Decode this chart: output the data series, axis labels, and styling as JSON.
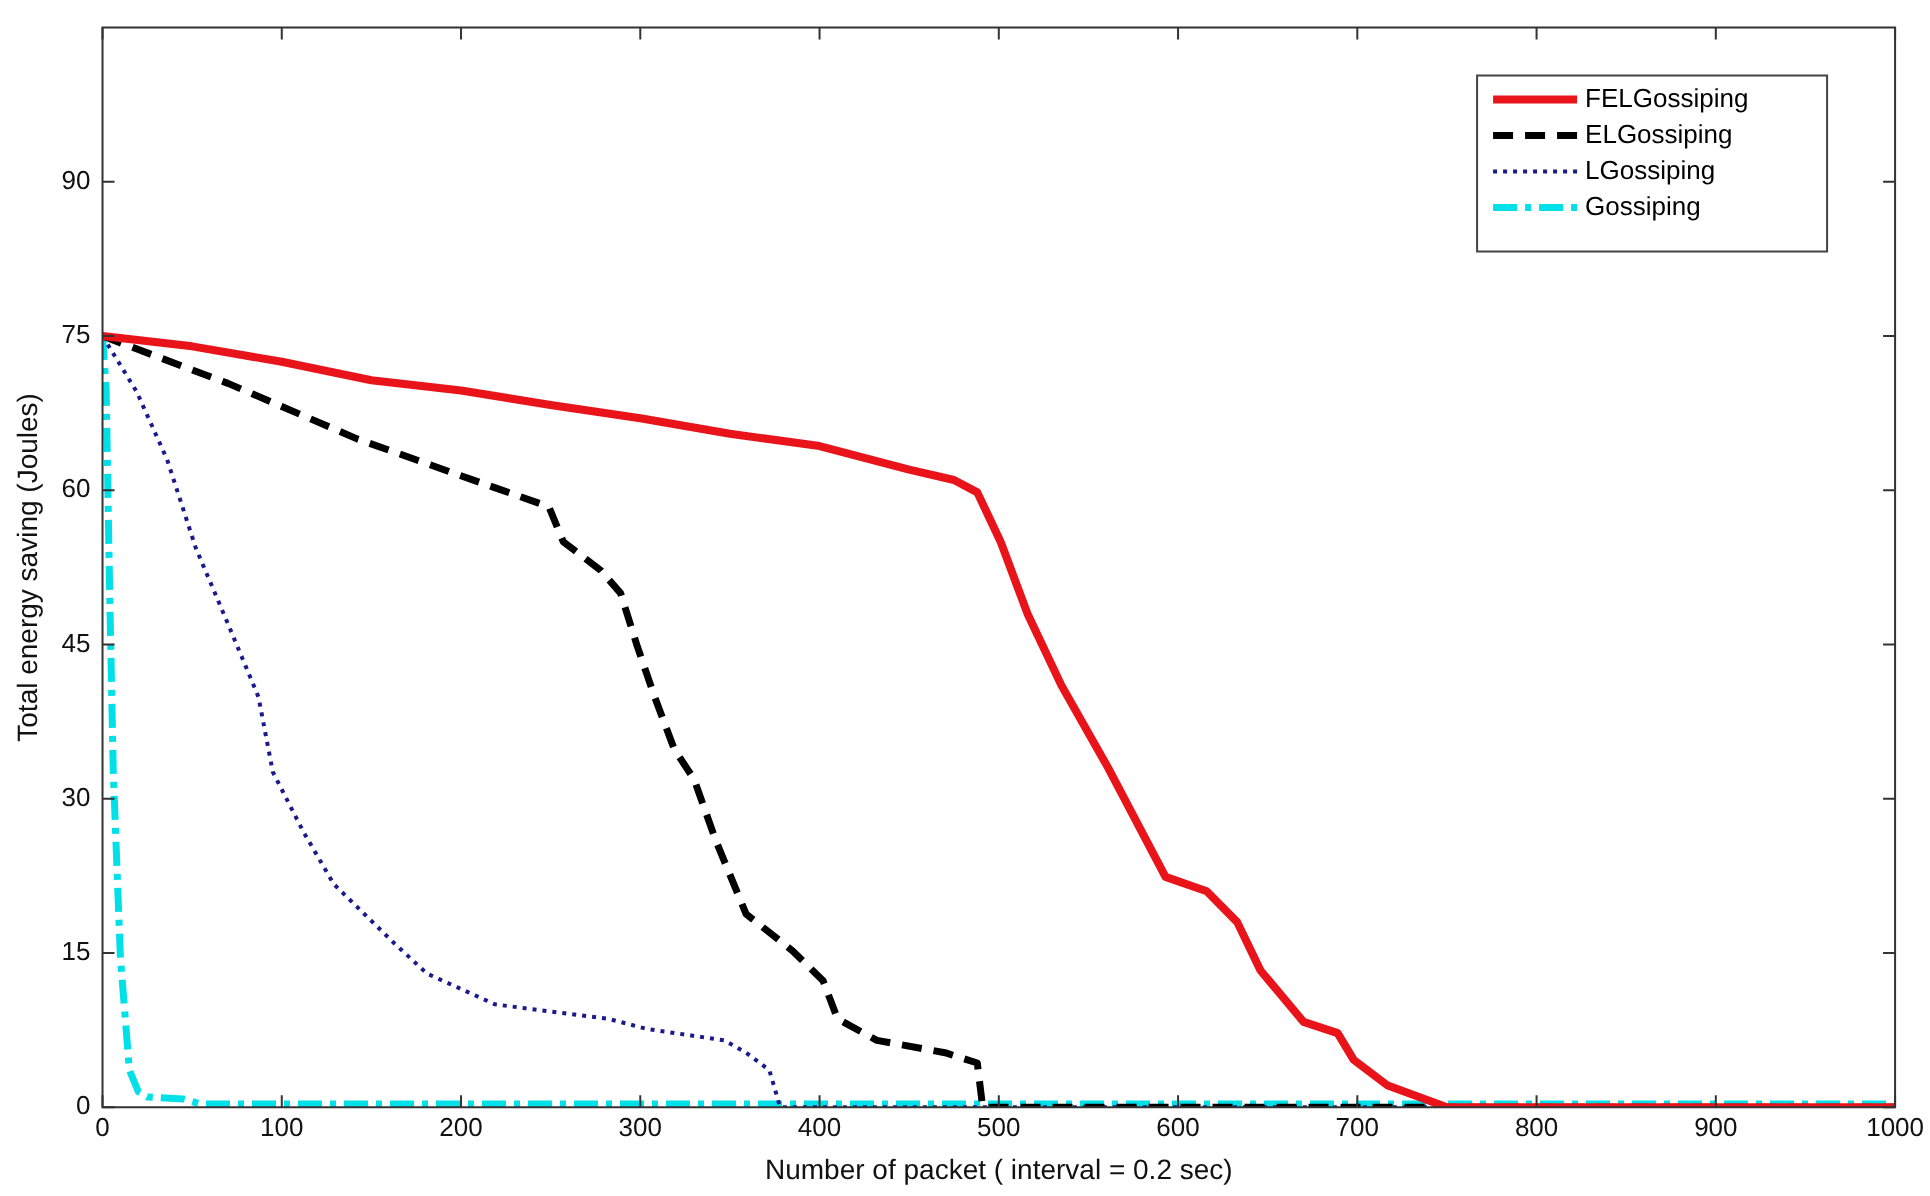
{
  "chart_data": {
    "type": "line",
    "xlabel": "Number of packet ( interval = 0.2 sec)",
    "ylabel": "Total energy saving (Joules)",
    "xlim": [
      0,
      1000
    ],
    "ylim": [
      0,
      105
    ],
    "xticks": [
      0,
      100,
      200,
      300,
      400,
      500,
      600,
      700,
      800,
      900,
      1000
    ],
    "yticks": [
      0,
      15,
      30,
      45,
      60,
      75,
      90
    ],
    "grid": false,
    "legend": "top right",
    "marker": "none",
    "series": [
      {
        "name": "FELGossiping",
        "color": "#e8141a",
        "line_style": "solid",
        "x": [
          0,
          50,
          100,
          150,
          200,
          250,
          300,
          350,
          400,
          450,
          475,
          488,
          501,
          516,
          535,
          561,
          593,
          616,
          633,
          646,
          670,
          689,
          698,
          717,
          750,
          1000
        ],
        "values": [
          75,
          74,
          72.5,
          70.7,
          69.7,
          68.3,
          67,
          65.5,
          64.3,
          62,
          61,
          59.8,
          55,
          48,
          41,
          33,
          22.4,
          21,
          18,
          13.3,
          8.3,
          7.2,
          4.6,
          2.1,
          0,
          0
        ]
      },
      {
        "name": "ELGossiping",
        "color": "#000000",
        "line_style": "dashed",
        "x": [
          0,
          70,
          142,
          197,
          249,
          257,
          278,
          289,
          298,
          308,
          319,
          330,
          342,
          359,
          385,
          402,
          410,
          432,
          470,
          488,
          491,
          1000
        ],
        "values": [
          75,
          70.4,
          65,
          61.6,
          58.4,
          55,
          52.2,
          50,
          45,
          39.9,
          34.8,
          31.9,
          26,
          18.8,
          15.2,
          12.3,
          8.6,
          6.5,
          5.3,
          4.3,
          0,
          0
        ]
      },
      {
        "name": "LGossiping",
        "color": "#1a1a8c",
        "line_style": "dotted",
        "x": [
          0,
          19,
          36,
          52,
          70,
          87,
          95,
          112,
          129,
          163,
          181,
          219,
          282,
          304,
          347,
          359,
          372,
          378,
          1000
        ],
        "values": [
          75,
          69.6,
          63,
          54.4,
          47,
          39.9,
          32.6,
          26.8,
          21.7,
          15.9,
          13,
          10,
          8.6,
          7.6,
          6.5,
          5.3,
          3.6,
          0,
          0
        ]
      },
      {
        "name": "Gossiping",
        "color": "#00e0e8",
        "line_style": "dashdot",
        "x": [
          0,
          2,
          4,
          6,
          10,
          15,
          20,
          25,
          45,
          55,
          1000
        ],
        "values": [
          75,
          70,
          50,
          32.6,
          14.5,
          3.6,
          1.5,
          1,
          0.8,
          0.3,
          0.3
        ]
      }
    ]
  }
}
